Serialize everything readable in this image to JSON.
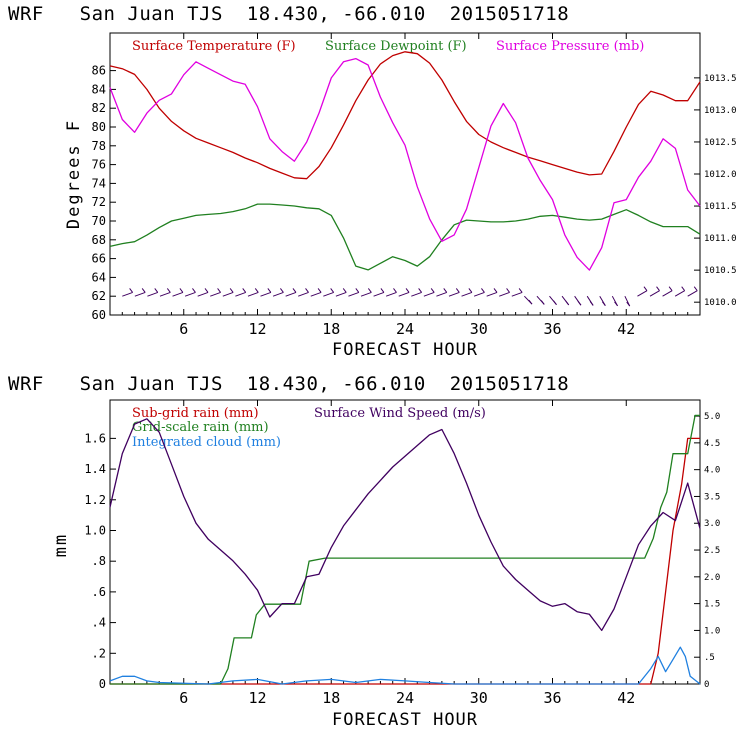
{
  "chart_data": [
    {
      "type": "line",
      "title": "WRF   San Juan TJS  18.430, -66.010  2015051718",
      "xlabel": "FORECAST HOUR",
      "ylabel": "Degrees F",
      "xlim": [
        0,
        48
      ],
      "ylim": [
        60,
        90
      ],
      "y2lim": [
        1009.8,
        1014.2
      ],
      "x_ticks": [
        6,
        12,
        18,
        24,
        30,
        36,
        42
      ],
      "y_ticks": [
        60,
        62,
        64,
        66,
        68,
        70,
        72,
        74,
        76,
        78,
        80,
        82,
        84,
        86
      ],
      "y2_ticks": [
        "1010.0",
        "1010.5",
        "1011.0",
        "1011.5",
        "1012.0",
        "1012.5",
        "1013.0",
        "1013.5"
      ],
      "legend_position": "top",
      "series": [
        {
          "name": "Surface Temperature (F)",
          "color": "#c00000",
          "axis": "left",
          "points": [
            [
              0,
              86.5
            ],
            [
              1,
              86.2
            ],
            [
              2,
              85.6
            ],
            [
              3,
              84
            ],
            [
              4,
              82
            ],
            [
              5,
              80.6
            ],
            [
              6,
              79.6
            ],
            [
              7,
              78.8
            ],
            [
              8,
              78.3
            ],
            [
              9,
              77.8
            ],
            [
              10,
              77.3
            ],
            [
              11,
              76.7
            ],
            [
              12,
              76.2
            ],
            [
              13,
              75.6
            ],
            [
              14,
              75.1
            ],
            [
              15,
              74.6
            ],
            [
              16,
              74.5
            ],
            [
              17,
              75.8
            ],
            [
              18,
              77.8
            ],
            [
              19,
              80.2
            ],
            [
              20,
              82.8
            ],
            [
              21,
              85
            ],
            [
              22,
              86.7
            ],
            [
              23,
              87.6
            ],
            [
              24,
              88
            ],
            [
              25,
              87.8
            ],
            [
              26,
              86.8
            ],
            [
              27,
              85
            ],
            [
              28,
              82.7
            ],
            [
              29,
              80.6
            ],
            [
              30,
              79.2
            ],
            [
              31,
              78.4
            ],
            [
              32,
              77.8
            ],
            [
              33,
              77.3
            ],
            [
              34,
              76.8
            ],
            [
              35,
              76.4
            ],
            [
              36,
              76
            ],
            [
              37,
              75.6
            ],
            [
              38,
              75.2
            ],
            [
              39,
              74.9
            ],
            [
              40,
              75
            ],
            [
              41,
              77.4
            ],
            [
              42,
              80
            ],
            [
              43,
              82.4
            ],
            [
              44,
              83.8
            ],
            [
              45,
              83.4
            ],
            [
              46,
              82.8
            ],
            [
              47,
              82.8
            ],
            [
              48,
              84.8
            ]
          ]
        },
        {
          "name": "Surface Dewpoint (F)",
          "color": "#208020",
          "axis": "left",
          "points": [
            [
              0,
              67.3
            ],
            [
              1,
              67.6
            ],
            [
              2,
              67.8
            ],
            [
              3,
              68.5
            ],
            [
              4,
              69.3
            ],
            [
              5,
              70
            ],
            [
              6,
              70.3
            ],
            [
              7,
              70.6
            ],
            [
              8,
              70.7
            ],
            [
              9,
              70.8
            ],
            [
              10,
              71
            ],
            [
              11,
              71.3
            ],
            [
              12,
              71.8
            ],
            [
              13,
              71.8
            ],
            [
              14,
              71.7
            ],
            [
              15,
              71.6
            ],
            [
              16,
              71.4
            ],
            [
              17,
              71.3
            ],
            [
              18,
              70.6
            ],
            [
              19,
              68.2
            ],
            [
              20,
              65.2
            ],
            [
              21,
              64.8
            ],
            [
              22,
              65.5
            ],
            [
              23,
              66.2
            ],
            [
              24,
              65.8
            ],
            [
              25,
              65.2
            ],
            [
              26,
              66.2
            ],
            [
              27,
              68
            ],
            [
              28,
              69.6
            ],
            [
              29,
              70.1
            ],
            [
              30,
              70
            ],
            [
              31,
              69.9
            ],
            [
              32,
              69.9
            ],
            [
              33,
              70
            ],
            [
              34,
              70.2
            ],
            [
              35,
              70.5
            ],
            [
              36,
              70.6
            ],
            [
              37,
              70.4
            ],
            [
              38,
              70.2
            ],
            [
              39,
              70.1
            ],
            [
              40,
              70.2
            ],
            [
              41,
              70.7
            ],
            [
              42,
              71.2
            ],
            [
              43,
              70.6
            ],
            [
              44,
              69.9
            ],
            [
              45,
              69.4
            ],
            [
              46,
              69.4
            ],
            [
              47,
              69.4
            ],
            [
              48,
              68.6
            ]
          ]
        },
        {
          "name": "Surface Pressure (mb)",
          "color": "#e000e0",
          "axis": "right",
          "points": [
            [
              0,
              1013.35
            ],
            [
              1,
              1012.85
            ],
            [
              2,
              1012.65
            ],
            [
              3,
              1012.95
            ],
            [
              4,
              1013.15
            ],
            [
              5,
              1013.25
            ],
            [
              6,
              1013.55
            ],
            [
              7,
              1013.75
            ],
            [
              8,
              1013.65
            ],
            [
              9,
              1013.55
            ],
            [
              10,
              1013.45
            ],
            [
              11,
              1013.4
            ],
            [
              12,
              1013.05
            ],
            [
              13,
              1012.55
            ],
            [
              14,
              1012.35
            ],
            [
              15,
              1012.2
            ],
            [
              16,
              1012.5
            ],
            [
              17,
              1012.95
            ],
            [
              18,
              1013.5
            ],
            [
              19,
              1013.75
            ],
            [
              20,
              1013.8
            ],
            [
              21,
              1013.7
            ],
            [
              22,
              1013.2
            ],
            [
              23,
              1012.8
            ],
            [
              24,
              1012.45
            ],
            [
              25,
              1011.8
            ],
            [
              26,
              1011.3
            ],
            [
              27,
              1010.95
            ],
            [
              28,
              1011.05
            ],
            [
              29,
              1011.45
            ],
            [
              30,
              1012.1
            ],
            [
              31,
              1012.75
            ],
            [
              32,
              1013.1
            ],
            [
              33,
              1012.8
            ],
            [
              34,
              1012.25
            ],
            [
              35,
              1011.9
            ],
            [
              36,
              1011.6
            ],
            [
              37,
              1011.05
            ],
            [
              38,
              1010.7
            ],
            [
              39,
              1010.5
            ],
            [
              40,
              1010.85
            ],
            [
              41,
              1011.55
            ],
            [
              42,
              1011.6
            ],
            [
              43,
              1011.95
            ],
            [
              44,
              1012.2
            ],
            [
              45,
              1012.55
            ],
            [
              46,
              1012.4
            ],
            [
              47,
              1011.75
            ],
            [
              48,
              1011.5
            ]
          ]
        }
      ],
      "wind_barbs": {
        "x_start": 1,
        "x_end": 47,
        "count": 46,
        "color": "#400060"
      }
    },
    {
      "type": "line",
      "title": "WRF   San Juan TJS  18.430, -66.010  2015051718",
      "xlabel": "FORECAST HOUR",
      "ylabel": "mm",
      "xlim": [
        0,
        48
      ],
      "ylim": [
        0,
        1.85
      ],
      "y2lim": [
        0,
        5.3
      ],
      "x_ticks": [
        6,
        12,
        18,
        24,
        30,
        36,
        42
      ],
      "y_ticks": [
        "0",
        ".2",
        ".4",
        ".6",
        ".8",
        "1.0",
        "1.2",
        "1.4",
        "1.6"
      ],
      "y2_ticks": [
        "0",
        ".5",
        "1.0",
        "1.5",
        "2.0",
        "2.5",
        "3.0",
        "3.5",
        "4.0",
        "4.5",
        "5.0"
      ],
      "legend_position": "top-left",
      "series": [
        {
          "name": "Sub-grid rain (mm)",
          "color": "#c00000",
          "axis": "left",
          "points": [
            [
              0,
              0
            ],
            [
              44,
              0
            ],
            [
              44.6,
              0.2
            ],
            [
              45.2,
              0.6
            ],
            [
              45.8,
              1.0
            ],
            [
              46.5,
              1.3
            ],
            [
              47,
              1.6
            ],
            [
              48,
              1.6
            ]
          ]
        },
        {
          "name": "Grid-scale rain (mm)",
          "color": "#208020",
          "axis": "left",
          "points": [
            [
              0,
              0
            ],
            [
              9,
              0
            ],
            [
              9.6,
              0.1
            ],
            [
              10.1,
              0.3
            ],
            [
              11.5,
              0.3
            ],
            [
              11.9,
              0.45
            ],
            [
              12.6,
              0.52
            ],
            [
              15.5,
              0.52
            ],
            [
              16.2,
              0.8
            ],
            [
              17.5,
              0.82
            ],
            [
              43.5,
              0.82
            ],
            [
              44.2,
              0.95
            ],
            [
              44.8,
              1.15
            ],
            [
              45.3,
              1.25
            ],
            [
              45.8,
              1.5
            ],
            [
              47,
              1.5
            ],
            [
              47.6,
              1.75
            ],
            [
              48,
              1.75
            ]
          ]
        },
        {
          "name": "Integrated cloud (mm)",
          "color": "#2080e0",
          "axis": "left",
          "points": [
            [
              0,
              0.02
            ],
            [
              1,
              0.05
            ],
            [
              2,
              0.05
            ],
            [
              3,
              0.02
            ],
            [
              4,
              0.01
            ],
            [
              8,
              0
            ],
            [
              10,
              0.02
            ],
            [
              12,
              0.03
            ],
            [
              14,
              0
            ],
            [
              16,
              0.02
            ],
            [
              18,
              0.03
            ],
            [
              20,
              0.01
            ],
            [
              22,
              0.03
            ],
            [
              24,
              0.02
            ],
            [
              26,
              0.01
            ],
            [
              28,
              0
            ],
            [
              40,
              0
            ],
            [
              43,
              0
            ],
            [
              44,
              0.1
            ],
            [
              44.6,
              0.18
            ],
            [
              45.2,
              0.08
            ],
            [
              45.8,
              0.16
            ],
            [
              46.4,
              0.24
            ],
            [
              46.8,
              0.18
            ],
            [
              47.2,
              0.05
            ],
            [
              48,
              0
            ]
          ]
        },
        {
          "name": "Surface Wind Speed (m/s)",
          "color": "#400060",
          "axis": "right",
          "points": [
            [
              0,
              3.3
            ],
            [
              1,
              4.3
            ],
            [
              2,
              4.85
            ],
            [
              3,
              4.95
            ],
            [
              4,
              4.7
            ],
            [
              5,
              4.1
            ],
            [
              6,
              3.5
            ],
            [
              7,
              3.0
            ],
            [
              8,
              2.7
            ],
            [
              9,
              2.5
            ],
            [
              10,
              2.3
            ],
            [
              11,
              2.05
            ],
            [
              12,
              1.75
            ],
            [
              13,
              1.25
            ],
            [
              14,
              1.5
            ],
            [
              15,
              1.5
            ],
            [
              16,
              2.0
            ],
            [
              17,
              2.05
            ],
            [
              18,
              2.55
            ],
            [
              19,
              2.95
            ],
            [
              20,
              3.25
            ],
            [
              21,
              3.55
            ],
            [
              22,
              3.8
            ],
            [
              23,
              4.05
            ],
            [
              24,
              4.25
            ],
            [
              25,
              4.45
            ],
            [
              26,
              4.65
            ],
            [
              27,
              4.75
            ],
            [
              28,
              4.3
            ],
            [
              29,
              3.75
            ],
            [
              30,
              3.15
            ],
            [
              31,
              2.65
            ],
            [
              32,
              2.2
            ],
            [
              33,
              1.95
            ],
            [
              34,
              1.75
            ],
            [
              35,
              1.55
            ],
            [
              36,
              1.45
            ],
            [
              37,
              1.5
            ],
            [
              38,
              1.35
            ],
            [
              39,
              1.3
            ],
            [
              40,
              1.0
            ],
            [
              41,
              1.4
            ],
            [
              42,
              2.0
            ],
            [
              43,
              2.6
            ],
            [
              44,
              2.95
            ],
            [
              45,
              3.2
            ],
            [
              46,
              3.05
            ],
            [
              47,
              3.75
            ],
            [
              48,
              2.9
            ]
          ]
        }
      ]
    }
  ]
}
